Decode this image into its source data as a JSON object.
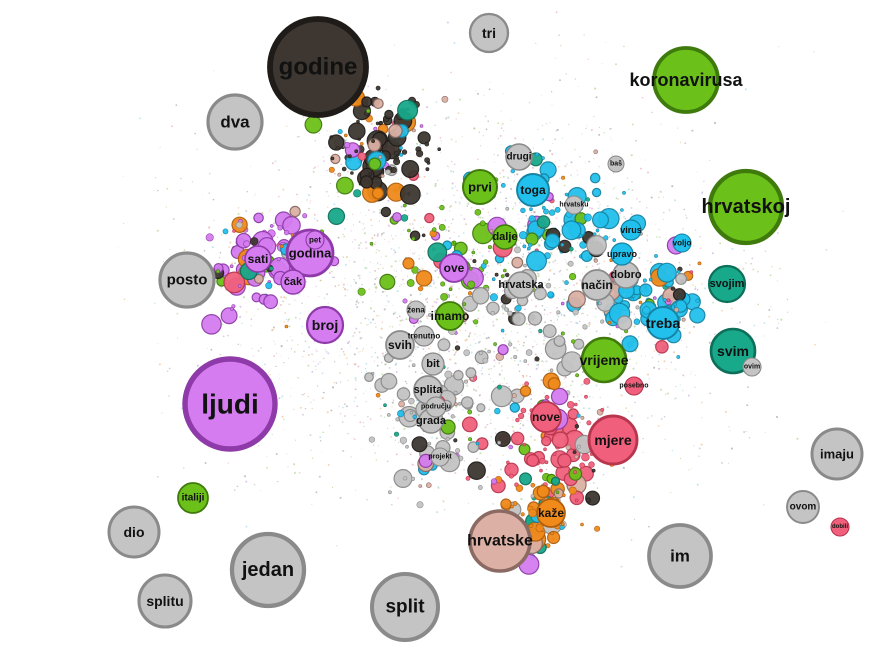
{
  "graph": {
    "colors": {
      "gray": "#c4c4c4",
      "purple": "#d47cf0",
      "green": "#6cc01a",
      "dark": "#3e3731",
      "pink": "#f0607c",
      "teal": "#18a88a",
      "cyan": "#22c0ec",
      "orange": "#f08a1a",
      "rose": "#dcb0a4"
    },
    "nodes": [
      {
        "id": "godine",
        "label": "godine",
        "color": "dark"
      },
      {
        "id": "tri",
        "label": "tri",
        "color": "gray"
      },
      {
        "id": "koronavirusa",
        "label": "koronavirusa",
        "color": "green"
      },
      {
        "id": "dva",
        "label": "dva",
        "color": "gray"
      },
      {
        "id": "hrvatskoj",
        "label": "hrvatskoj",
        "color": "green"
      },
      {
        "id": "posto",
        "label": "posto",
        "color": "gray"
      },
      {
        "id": "sati",
        "label": "sati",
        "color": "purple"
      },
      {
        "id": "godina",
        "label": "godina",
        "color": "purple"
      },
      {
        "id": "cak",
        "label": "čak",
        "color": "purple"
      },
      {
        "id": "broj",
        "label": "broj",
        "color": "purple"
      },
      {
        "id": "ljudi",
        "label": "ljudi",
        "color": "purple"
      },
      {
        "id": "svojim",
        "label": "svojim",
        "color": "teal"
      },
      {
        "id": "treba",
        "label": "treba",
        "color": "cyan"
      },
      {
        "id": "svim",
        "label": "svim",
        "color": "teal"
      },
      {
        "id": "vrijeme",
        "label": "vrijeme",
        "color": "green"
      },
      {
        "id": "mjere",
        "label": "mjere",
        "color": "pink"
      },
      {
        "id": "imaju",
        "label": "imaju",
        "color": "gray"
      },
      {
        "id": "ovom",
        "label": "ovom",
        "color": "gray"
      },
      {
        "id": "dobili",
        "label": "dobili",
        "color": "pink"
      },
      {
        "id": "italiji",
        "label": "italiji",
        "color": "green"
      },
      {
        "id": "dio",
        "label": "dio",
        "color": "gray"
      },
      {
        "id": "jedan",
        "label": "jedan",
        "color": "gray"
      },
      {
        "id": "splitu",
        "label": "splitu",
        "color": "gray"
      },
      {
        "id": "split",
        "label": "split",
        "color": "gray"
      },
      {
        "id": "hrvatske",
        "label": "hrvatske",
        "color": "rose"
      },
      {
        "id": "im",
        "label": "im",
        "color": "gray"
      },
      {
        "id": "kaze",
        "label": "kaže",
        "color": "orange"
      },
      {
        "id": "nove",
        "label": "nove",
        "color": "pink"
      },
      {
        "id": "grada",
        "label": "grada",
        "color": "gray"
      },
      {
        "id": "splita",
        "label": "splita",
        "color": "gray"
      },
      {
        "id": "bit",
        "label": "bit",
        "color": "gray"
      },
      {
        "id": "svih",
        "label": "svih",
        "color": "gray"
      },
      {
        "id": "trenutno",
        "label": "trenutno",
        "color": "gray"
      },
      {
        "id": "imamo",
        "label": "imamo",
        "color": "green"
      },
      {
        "id": "ove",
        "label": "ove",
        "color": "purple"
      },
      {
        "id": "hrvatska",
        "label": "hrvatska",
        "color": "gray"
      },
      {
        "id": "nacin",
        "label": "način",
        "color": "gray"
      },
      {
        "id": "dobro",
        "label": "dobro",
        "color": "gray"
      },
      {
        "id": "upravo",
        "label": "upravo",
        "color": "cyan"
      },
      {
        "id": "prvi",
        "label": "prvi",
        "color": "green"
      },
      {
        "id": "toga",
        "label": "toga",
        "color": "cyan"
      },
      {
        "id": "drugi",
        "label": "drugi",
        "color": "gray"
      },
      {
        "id": "dalje",
        "label": "dalje",
        "color": "green"
      },
      {
        "id": "hrvatsku",
        "label": "hrvatsku",
        "color": "gray"
      },
      {
        "id": "zena",
        "label": "žena",
        "color": "gray"
      },
      {
        "id": "podrucju",
        "label": "području",
        "color": "gray"
      },
      {
        "id": "projekt",
        "label": "projekt",
        "color": "gray"
      },
      {
        "id": "voljo",
        "label": "voljo",
        "color": "cyan"
      },
      {
        "id": "virus",
        "label": "virus",
        "color": "cyan"
      },
      {
        "id": "bas",
        "label": "baš",
        "color": "gray"
      },
      {
        "id": "ovim",
        "label": "ovim",
        "color": "gray"
      },
      {
        "id": "posebno",
        "label": "posebno",
        "color": "pink"
      },
      {
        "id": "pet",
        "label": "pet",
        "color": "purple"
      }
    ]
  }
}
